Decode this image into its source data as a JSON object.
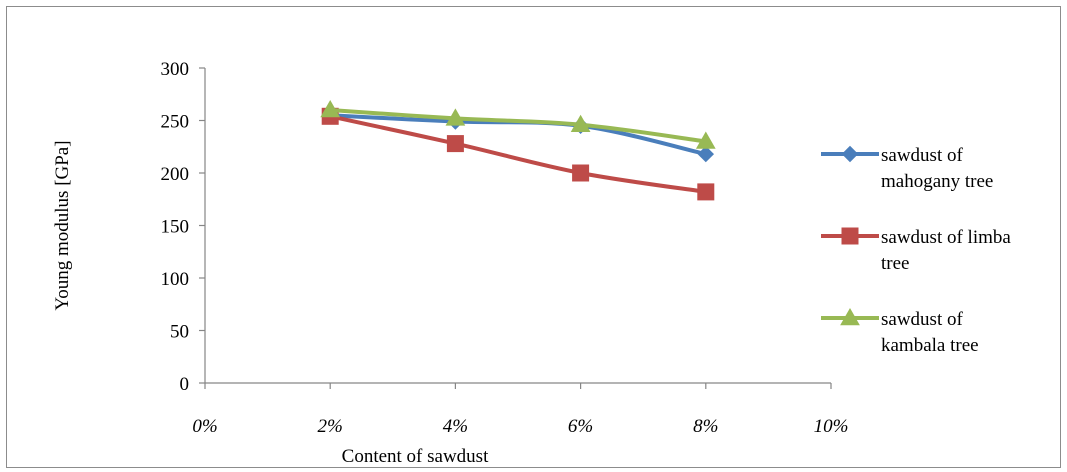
{
  "chart_data": {
    "type": "line",
    "title": "",
    "xlabel": "Content of sawdust",
    "ylabel": "Young modulus [GPa]",
    "x": [
      0.02,
      0.04,
      0.06,
      0.08
    ],
    "xlim": [
      0,
      0.1
    ],
    "xticks": [
      0,
      0.02,
      0.04,
      0.06,
      0.08,
      0.1
    ],
    "xtick_labels": [
      "0%",
      "2%",
      "4%",
      "6%",
      "8%",
      "10%"
    ],
    "ylim": [
      0,
      300
    ],
    "yticks": [
      0,
      50,
      100,
      150,
      200,
      250,
      300
    ],
    "ytick_labels": [
      "0",
      "50",
      "100",
      "150",
      "200",
      "250",
      "300"
    ],
    "grid": false,
    "legend_position": "right",
    "series": [
      {
        "name": "sawdust of mahogany tree",
        "legend_lines": [
          "sawdust of",
          "mahogany tree"
        ],
        "values": [
          255,
          249,
          245,
          218
        ],
        "color": "#4a7ebb",
        "marker": "diamond"
      },
      {
        "name": "sawdust of limba tree",
        "legend_lines": [
          "sawdust of limba",
          "tree"
        ],
        "values": [
          254,
          228,
          200,
          182
        ],
        "color": "#be4b48",
        "marker": "square"
      },
      {
        "name": "sawdust of kambala tree",
        "legend_lines": [
          "sawdust of",
          "kambala tree"
        ],
        "values": [
          260,
          252,
          246,
          230
        ],
        "color": "#98b954",
        "marker": "triangle"
      }
    ]
  }
}
